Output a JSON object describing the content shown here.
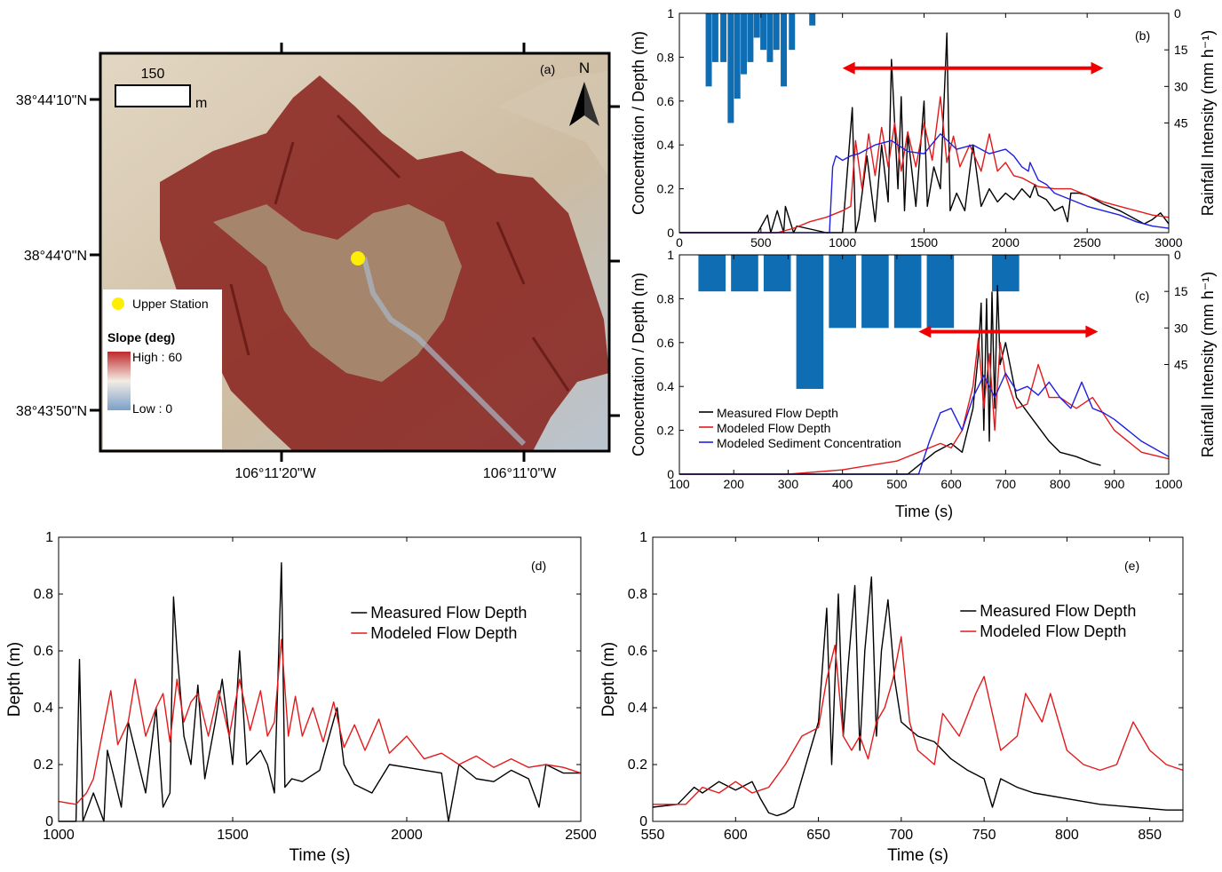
{
  "colors": {
    "measured": "#000000",
    "modeled": "#e31a1c",
    "sediment": "#1f1fe0",
    "rainfall": "#0f6db3",
    "arrow": "#f00000",
    "station": "#ffee00",
    "slope_high": "#c0282a",
    "slope_low": "#7aa0c9",
    "terrain_dark": "#7a1a17",
    "terrain_light": "#cfc0a8"
  },
  "map": {
    "panel_label": "(a)",
    "north_label": "N",
    "scale_value": "150",
    "scale_unit": "m",
    "lat_ticks": [
      "38°44'10\"N",
      "38°44'0\"N",
      "38°43'50\"N"
    ],
    "lon_ticks": [
      "106°11'20\"W",
      "106°11'0\"W"
    ],
    "legend_station": "Upper Station",
    "legend_title": "Slope (deg)",
    "legend_high": "High : 60",
    "legend_low": "Low : 0"
  },
  "panel_b": {
    "label": "(b)"
  },
  "panel_c": {
    "label": "(c)"
  },
  "panel_d": {
    "label": "(d)"
  },
  "panel_e": {
    "label": "(e)"
  },
  "chart_data": [
    {
      "id": "b",
      "type": "line",
      "xlabel": "",
      "ylabel": "Concentration / Depth (m)",
      "y2label": "Rainfall Intensity (mm h⁻¹)",
      "xlim": [
        0,
        3000
      ],
      "ylim": [
        0,
        1
      ],
      "y2lim": [
        0,
        90
      ],
      "y2_reversed": true,
      "xticks": [
        "0",
        "500",
        "1000",
        "1500",
        "2000",
        "2500",
        "3000"
      ],
      "yticks": [
        "0",
        "0.2",
        "0.4",
        "0.6",
        "0.8",
        "1"
      ],
      "y2ticks": [
        "0",
        "15",
        "30",
        "45"
      ],
      "rainfall_bars": {
        "x": [
          180,
          220,
          270,
          315,
          355,
          395,
          435,
          475,
          515,
          555,
          595,
          640,
          690,
          815
        ],
        "width": 38,
        "values": [
          30,
          20,
          20,
          45,
          35,
          25,
          20,
          10,
          15,
          20,
          15,
          30,
          15,
          5
        ]
      },
      "arrow": {
        "x": [
          1000,
          2600
        ],
        "y": 0.75
      },
      "series": [
        {
          "name": "Measured Flow Depth",
          "x": [
            0,
            480,
            540,
            560,
            600,
            640,
            650,
            700,
            720,
            900,
            950,
            1000,
            1060,
            1080,
            1100,
            1150,
            1200,
            1240,
            1280,
            1300,
            1340,
            1360,
            1380,
            1400,
            1450,
            1500,
            1520,
            1560,
            1600,
            1640,
            1660,
            1700,
            1750,
            1800,
            1850,
            1900,
            1950,
            2000,
            2050,
            2100,
            2150,
            2180,
            2200,
            2250,
            2300,
            2350,
            2380,
            2400,
            2450,
            2500,
            2600,
            2700,
            2800,
            2850,
            2900,
            2950,
            3000
          ],
          "y": [
            0,
            0,
            0.08,
            0,
            0.1,
            0,
            0.12,
            0,
            0.03,
            0,
            0,
            0,
            0.57,
            0,
            0.06,
            0.35,
            0.05,
            0.4,
            0.14,
            0.79,
            0.2,
            0.62,
            0.1,
            0.45,
            0.12,
            0.6,
            0.12,
            0.3,
            0.2,
            0.91,
            0.1,
            0.18,
            0.1,
            0.4,
            0.12,
            0.2,
            0.14,
            0.18,
            0.15,
            0.2,
            0.16,
            0.22,
            0.17,
            0.15,
            0.1,
            0.12,
            0.05,
            0.18,
            0.18,
            0.17,
            0.13,
            0.1,
            0.06,
            0.04,
            0.06,
            0.09,
            0.04
          ]
        },
        {
          "name": "Modeled Flow Depth",
          "x": [
            0,
            600,
            700,
            800,
            900,
            1000,
            1050,
            1080,
            1120,
            1160,
            1200,
            1240,
            1280,
            1320,
            1360,
            1400,
            1450,
            1500,
            1550,
            1600,
            1640,
            1680,
            1720,
            1780,
            1850,
            1900,
            1950,
            2000,
            2050,
            2100,
            2200,
            2300,
            2400,
            2500,
            2600,
            2700,
            2800,
            2900,
            3000
          ],
          "y": [
            0,
            0,
            0.02,
            0.05,
            0.07,
            0.1,
            0.12,
            0.42,
            0.2,
            0.45,
            0.26,
            0.48,
            0.3,
            0.5,
            0.28,
            0.46,
            0.3,
            0.5,
            0.33,
            0.62,
            0.32,
            0.44,
            0.3,
            0.4,
            0.28,
            0.45,
            0.28,
            0.32,
            0.26,
            0.25,
            0.21,
            0.2,
            0.2,
            0.17,
            0.14,
            0.12,
            0.1,
            0.08,
            0.07
          ]
        },
        {
          "name": "Modeled Sediment Concentration",
          "x": [
            0,
            920,
            940,
            960,
            1000,
            1050,
            1100,
            1150,
            1200,
            1300,
            1400,
            1500,
            1600,
            1700,
            1800,
            1900,
            2000,
            2050,
            2100,
            2140,
            2150,
            2200,
            2250,
            2300,
            2400,
            2500,
            2600,
            2700,
            2800,
            2900,
            3000
          ],
          "y": [
            0,
            0,
            0.3,
            0.35,
            0.33,
            0.35,
            0.36,
            0.38,
            0.4,
            0.42,
            0.37,
            0.36,
            0.45,
            0.38,
            0.4,
            0.36,
            0.38,
            0.35,
            0.3,
            0.28,
            0.32,
            0.24,
            0.22,
            0.18,
            0.15,
            0.12,
            0.1,
            0.08,
            0.05,
            0.03,
            0.02
          ]
        }
      ]
    },
    {
      "id": "c",
      "type": "line",
      "xlabel": "Time (s)",
      "ylabel": "Concentration / Depth (m)",
      "y2label": "Rainfall Intensity (mm h⁻¹)",
      "xlim": [
        100,
        1000
      ],
      "ylim": [
        0,
        1
      ],
      "y2lim": [
        0,
        90
      ],
      "y2_reversed": true,
      "xticks": [
        "100",
        "200",
        "300",
        "400",
        "500",
        "600",
        "700",
        "800",
        "900",
        "1000"
      ],
      "yticks": [
        "0",
        "0.2",
        "0.4",
        "0.6",
        "0.8",
        "1"
      ],
      "y2ticks": [
        "0",
        "15",
        "30",
        "45"
      ],
      "legend": [
        "Measured Flow Depth",
        "Modeled Flow Depth",
        "Modeled Sediment Concentration"
      ],
      "legend_position": "lower-left",
      "rainfall_bars": {
        "x": [
          160,
          220,
          280,
          340,
          400,
          460,
          520,
          580,
          700
        ],
        "width": 50,
        "values": [
          15,
          15,
          15,
          55,
          30,
          30,
          30,
          30,
          15
        ]
      },
      "arrow": {
        "x": [
          540,
          870
        ],
        "y": 0.65
      },
      "series": [
        {
          "name": "Measured Flow Depth",
          "x": [
            100,
            520,
            550,
            570,
            600,
            620,
            640,
            650,
            655,
            660,
            665,
            670,
            675,
            680,
            685,
            690,
            700,
            720,
            750,
            780,
            800,
            830,
            860,
            875
          ],
          "y": [
            0,
            0,
            0.06,
            0.1,
            0.14,
            0.1,
            0.3,
            0.55,
            0.78,
            0.2,
            0.8,
            0.15,
            0.83,
            0.3,
            0.86,
            0.5,
            0.6,
            0.35,
            0.25,
            0.15,
            0.1,
            0.08,
            0.05,
            0.04
          ]
        },
        {
          "name": "Modeled Flow Depth",
          "x": [
            100,
            300,
            400,
            450,
            500,
            540,
            580,
            600,
            620,
            640,
            650,
            660,
            670,
            680,
            690,
            700,
            720,
            740,
            760,
            780,
            800,
            830,
            860,
            900,
            950,
            1000
          ],
          "y": [
            0,
            0,
            0.02,
            0.04,
            0.06,
            0.1,
            0.14,
            0.12,
            0.2,
            0.4,
            0.62,
            0.3,
            0.55,
            0.2,
            0.6,
            0.45,
            0.3,
            0.32,
            0.5,
            0.35,
            0.35,
            0.3,
            0.35,
            0.2,
            0.1,
            0.07
          ]
        },
        {
          "name": "Modeled Sediment Concentration",
          "x": [
            100,
            540,
            560,
            580,
            600,
            620,
            640,
            660,
            680,
            700,
            720,
            740,
            760,
            780,
            800,
            820,
            840,
            860,
            880,
            900,
            950,
            1000
          ],
          "y": [
            0,
            0,
            0.15,
            0.28,
            0.3,
            0.2,
            0.35,
            0.45,
            0.35,
            0.46,
            0.38,
            0.4,
            0.36,
            0.42,
            0.35,
            0.3,
            0.42,
            0.3,
            0.28,
            0.25,
            0.15,
            0.08
          ]
        }
      ]
    },
    {
      "id": "d",
      "type": "line",
      "xlabel": "Time (s)",
      "ylabel": "Depth (m)",
      "xlim": [
        1000,
        2500
      ],
      "ylim": [
        0,
        1
      ],
      "xticks": [
        "1000",
        "1500",
        "2000",
        "2500"
      ],
      "yticks": [
        "0",
        "0.2",
        "0.4",
        "0.6",
        "0.8",
        "1"
      ],
      "legend": [
        "Measured Flow Depth",
        "Modeled Flow Depth"
      ],
      "legend_position": "top-right",
      "series": [
        {
          "name": "Measured Flow Depth",
          "x": [
            1000,
            1050,
            1060,
            1070,
            1100,
            1130,
            1140,
            1180,
            1200,
            1250,
            1280,
            1300,
            1320,
            1330,
            1340,
            1360,
            1380,
            1400,
            1420,
            1450,
            1470,
            1500,
            1520,
            1540,
            1580,
            1600,
            1620,
            1640,
            1650,
            1670,
            1700,
            1750,
            1800,
            1820,
            1850,
            1900,
            1950,
            2000,
            2050,
            2100,
            2120,
            2150,
            2200,
            2250,
            2300,
            2350,
            2380,
            2400,
            2450,
            2500
          ],
          "y": [
            0,
            0,
            0.57,
            0,
            0.1,
            0,
            0.25,
            0.05,
            0.35,
            0.1,
            0.4,
            0.05,
            0.1,
            0.79,
            0.6,
            0.3,
            0.2,
            0.48,
            0.15,
            0.35,
            0.5,
            0.2,
            0.6,
            0.2,
            0.25,
            0.2,
            0.1,
            0.91,
            0.12,
            0.15,
            0.14,
            0.18,
            0.4,
            0.2,
            0.13,
            0.1,
            0.2,
            0.19,
            0.18,
            0.17,
            0.0,
            0.2,
            0.15,
            0.14,
            0.18,
            0.15,
            0.05,
            0.2,
            0.17,
            0.17
          ]
        },
        {
          "name": "Modeled Flow Depth",
          "x": [
            1000,
            1050,
            1080,
            1100,
            1150,
            1170,
            1200,
            1220,
            1250,
            1280,
            1300,
            1320,
            1340,
            1360,
            1380,
            1400,
            1430,
            1460,
            1490,
            1520,
            1550,
            1580,
            1600,
            1620,
            1640,
            1660,
            1680,
            1700,
            1730,
            1760,
            1790,
            1820,
            1850,
            1880,
            1920,
            1950,
            2000,
            2050,
            2100,
            2150,
            2200,
            2250,
            2300,
            2350,
            2400,
            2450,
            2500
          ],
          "y": [
            0.07,
            0.06,
            0.1,
            0.15,
            0.46,
            0.27,
            0.35,
            0.5,
            0.3,
            0.4,
            0.45,
            0.28,
            0.5,
            0.35,
            0.42,
            0.45,
            0.3,
            0.46,
            0.3,
            0.5,
            0.32,
            0.46,
            0.3,
            0.35,
            0.64,
            0.3,
            0.44,
            0.3,
            0.4,
            0.28,
            0.42,
            0.26,
            0.34,
            0.25,
            0.36,
            0.24,
            0.3,
            0.22,
            0.24,
            0.2,
            0.23,
            0.19,
            0.22,
            0.19,
            0.2,
            0.19,
            0.17
          ]
        }
      ]
    },
    {
      "id": "e",
      "type": "line",
      "xlabel": "Time (s)",
      "ylabel": "Depth (m)",
      "xlim": [
        550,
        870
      ],
      "ylim": [
        0,
        1
      ],
      "xticks": [
        "550",
        "600",
        "650",
        "700",
        "750",
        "800",
        "850"
      ],
      "yticks": [
        "0",
        "0.2",
        "0.4",
        "0.6",
        "0.8",
        "1"
      ],
      "legend": [
        "Measured Flow Depth",
        "Modeled Flow Depth"
      ],
      "legend_position": "top-right",
      "series": [
        {
          "name": "Measured Flow Depth",
          "x": [
            550,
            565,
            575,
            580,
            590,
            600,
            610,
            615,
            620,
            625,
            630,
            635,
            640,
            645,
            650,
            655,
            658,
            662,
            665,
            668,
            672,
            675,
            678,
            682,
            685,
            688,
            692,
            696,
            700,
            710,
            720,
            730,
            740,
            750,
            755,
            760,
            770,
            780,
            800,
            820,
            840,
            860,
            870
          ],
          "y": [
            0.05,
            0.06,
            0.12,
            0.1,
            0.14,
            0.11,
            0.14,
            0.08,
            0.03,
            0.02,
            0.03,
            0.05,
            0.15,
            0.25,
            0.35,
            0.75,
            0.2,
            0.8,
            0.3,
            0.55,
            0.83,
            0.25,
            0.6,
            0.86,
            0.3,
            0.6,
            0.78,
            0.5,
            0.35,
            0.3,
            0.28,
            0.22,
            0.18,
            0.15,
            0.05,
            0.15,
            0.12,
            0.1,
            0.08,
            0.06,
            0.05,
            0.04,
            0.04
          ]
        },
        {
          "name": "Modeled Flow Depth",
          "x": [
            550,
            570,
            580,
            590,
            600,
            610,
            620,
            630,
            640,
            650,
            655,
            660,
            665,
            670,
            675,
            680,
            685,
            690,
            695,
            700,
            705,
            710,
            720,
            725,
            735,
            745,
            750,
            760,
            770,
            775,
            785,
            790,
            800,
            810,
            820,
            830,
            840,
            850,
            860,
            870
          ],
          "y": [
            0.06,
            0.06,
            0.12,
            0.1,
            0.14,
            0.1,
            0.12,
            0.2,
            0.3,
            0.33,
            0.5,
            0.62,
            0.3,
            0.25,
            0.3,
            0.22,
            0.35,
            0.4,
            0.5,
            0.65,
            0.35,
            0.25,
            0.2,
            0.38,
            0.3,
            0.45,
            0.51,
            0.25,
            0.3,
            0.45,
            0.35,
            0.45,
            0.25,
            0.2,
            0.18,
            0.2,
            0.35,
            0.25,
            0.2,
            0.18
          ]
        }
      ]
    }
  ]
}
